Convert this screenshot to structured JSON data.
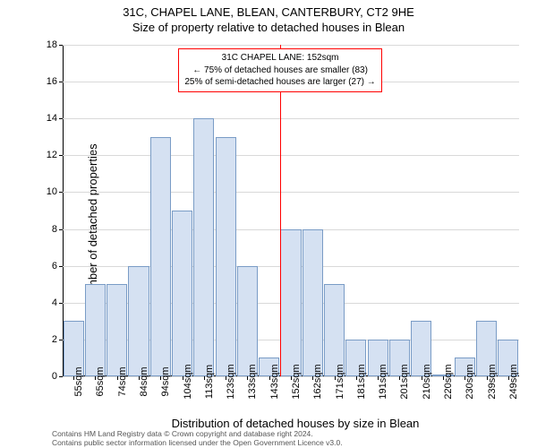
{
  "titles": {
    "main": "31C, CHAPEL LANE, BLEAN, CANTERBURY, CT2 9HE",
    "sub": "Size of property relative to detached houses in Blean"
  },
  "axes": {
    "y_label": "Number of detached properties",
    "x_label": "Distribution of detached houses by size in Blean",
    "y_ticks": [
      0,
      2,
      4,
      6,
      8,
      10,
      12,
      14,
      16,
      18
    ],
    "x_ticks": [
      "55sqm",
      "65sqm",
      "74sqm",
      "84sqm",
      "94sqm",
      "104sqm",
      "113sqm",
      "123sqm",
      "133sqm",
      "143sqm",
      "152sqm",
      "162sqm",
      "171sqm",
      "181sqm",
      "191sqm",
      "201sqm",
      "210sqm",
      "220sqm",
      "230sqm",
      "239sqm",
      "249sqm"
    ],
    "ylim": [
      0,
      18
    ],
    "label_fontsize": 13,
    "tick_fontsize": 11
  },
  "chart": {
    "type": "histogram",
    "values": [
      3,
      5,
      5,
      6,
      13,
      9,
      14,
      13,
      6,
      1,
      8,
      8,
      5,
      2,
      2,
      2,
      3,
      0,
      1,
      3,
      2
    ],
    "bar_color": "#d5e1f2",
    "bar_border": "#7a9cc6",
    "bar_width": 0.95,
    "grid_color": "#d9d9d9",
    "background": "#ffffff"
  },
  "marker": {
    "index": 10,
    "color": "#ff0000",
    "box_border": "#ff0000",
    "line1": "31C CHAPEL LANE: 152sqm",
    "line2": "← 75% of detached houses are smaller (83)",
    "line3": "25% of semi-detached houses are larger (27) →"
  },
  "attribution": {
    "line1": "Contains HM Land Registry data © Crown copyright and database right 2024.",
    "line2": "Contains public sector information licensed under the Open Government Licence v3.0."
  }
}
